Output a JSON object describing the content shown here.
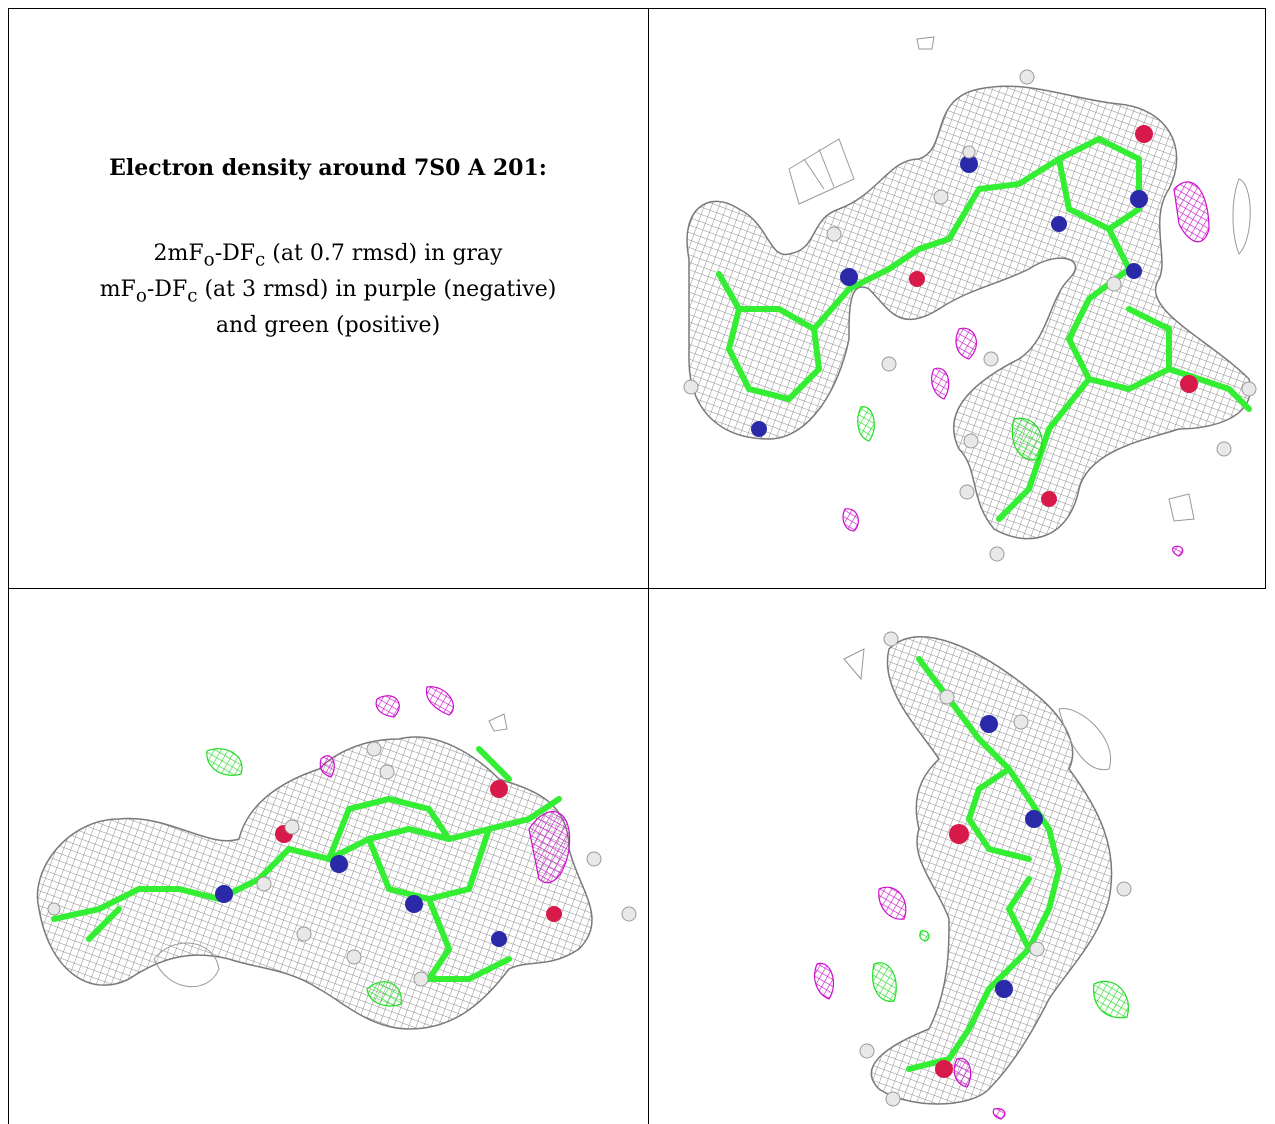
{
  "caption": {
    "title": "Electron density around 7S0 A 201:",
    "line1_prefix": "2mF",
    "line1_sub_o": "o",
    "line1_mid": "-DF",
    "line1_sub_c": "c",
    "line1_suffix": " (at 0.7 rmsd) in gray",
    "line2_prefix": "mF",
    "line2_sub_o": "o",
    "line2_mid": "-DF",
    "line2_sub_c": "c",
    "line2_suffix": " (at 3 rmsd) in purple (negative)",
    "line3": "and green (positive)"
  },
  "colors": {
    "mesh_gray": "#9a9a9a",
    "carbon_green": "#33ee33",
    "nitrogen_blue": "#2a2aa8",
    "oxygen_red": "#d81a4a",
    "negative_purple": "#cc11cc",
    "positive_green": "#22dd22",
    "hydrogen_white": "#e6e6e6"
  },
  "panels": [
    {
      "view": "top-right",
      "icon": "density-view-1"
    },
    {
      "view": "bottom-left",
      "icon": "density-view-2"
    },
    {
      "view": "bottom-right",
      "icon": "density-view-3"
    }
  ]
}
